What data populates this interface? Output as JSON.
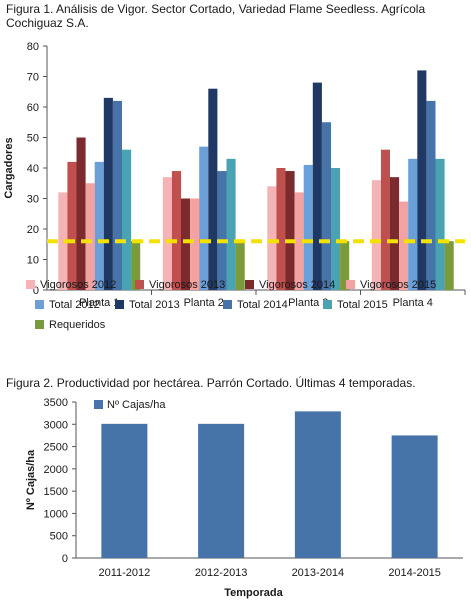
{
  "figure1": {
    "caption": "Figura 1. Análisis de Vigor. Sector Cortado, Variedad Flame Seedless. Agrícola Cochiguaz S.A."
  },
  "figure2": {
    "caption": "Figura 2. Productividad por hectárea. Parrón Cortado. Últimas 4 temporadas."
  },
  "chart_data": [
    {
      "type": "bar",
      "title": "",
      "xlabel": "",
      "ylabel": "Cargadores",
      "ylim": [
        0,
        80
      ],
      "yticks": [
        0,
        10,
        20,
        30,
        40,
        50,
        60,
        70,
        80
      ],
      "grid": false,
      "legend_position": "bottom",
      "categories": [
        "Planta 1",
        "Planta 2",
        "Planta 3",
        "Planta 4"
      ],
      "series": [
        {
          "name": "Vigorosos 2012",
          "color": "#f4b3b5",
          "values": [
            32,
            37,
            34,
            36
          ]
        },
        {
          "name": "Vigorosos 2013",
          "color": "#c0504d",
          "values": [
            42,
            39,
            40,
            46
          ]
        },
        {
          "name": "Vigorosos 2014",
          "color": "#7b2a2e",
          "values": [
            50,
            30,
            39,
            37
          ]
        },
        {
          "name": "Vigorosos 2015",
          "color": "#f2a2a0",
          "values": [
            35,
            30,
            32,
            29
          ]
        },
        {
          "name": "Total 2012",
          "color": "#6a9fd8",
          "values": [
            42,
            47,
            41,
            43
          ]
        },
        {
          "name": "Total 2013",
          "color": "#1f3864",
          "values": [
            63,
            66,
            68,
            72
          ]
        },
        {
          "name": "Total 2014",
          "color": "#4674a8",
          "values": [
            62,
            39,
            55,
            62
          ]
        },
        {
          "name": "Total 2015",
          "color": "#4aa3b2",
          "values": [
            46,
            43,
            40,
            43
          ]
        },
        {
          "name": "Requeridos",
          "color": "#7a9a3c",
          "values": [
            16,
            16,
            16,
            16
          ]
        }
      ],
      "reference_line": {
        "value": 16,
        "color": "#f3e200",
        "style": "dashed"
      }
    },
    {
      "type": "bar",
      "title": "",
      "xlabel": "Temporada",
      "ylabel": "Nº Cajas/ha",
      "ylim": [
        0,
        3500
      ],
      "yticks": [
        0,
        500,
        1000,
        1500,
        2000,
        2500,
        3000,
        3500
      ],
      "grid": false,
      "legend_position": "top-left",
      "categories": [
        "2011-2012",
        "2012-2013",
        "2013-2014",
        "2014-2015"
      ],
      "series": [
        {
          "name": "Nº Cajas/ha",
          "color": "#4674a8",
          "values": [
            3010,
            3010,
            3290,
            2750
          ]
        }
      ]
    }
  ]
}
